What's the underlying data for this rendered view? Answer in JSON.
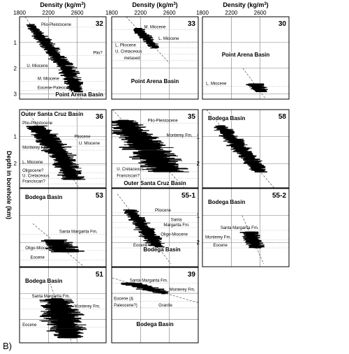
{
  "figure": {
    "label": "B)",
    "y_axis_label": "Depth in borehole (km)",
    "column_titles": [
      "Density (kg/m3)",
      "Density (kg/m3)",
      "Density (kg/m3)"
    ],
    "x_ticks": [
      "1800",
      "2200",
      "2600"
    ],
    "colors": {
      "data": "#000000",
      "grid": "#7a7a7a",
      "frame": "#000000",
      "trend": "#555555"
    }
  },
  "chart_data": [
    {
      "type": "scatter",
      "id": "32",
      "basin": "Point Arena Basin",
      "xlim": [
        1800,
        3000
      ],
      "ylim": [
        3.2,
        0
      ],
      "y_ticks": [
        "1",
        "2",
        "3"
      ],
      "units": [
        {
          "text": "Plio-Pleistocene",
          "x": 2100,
          "y": 0.35
        },
        {
          "text": "Plio?",
          "x": 2820,
          "y": 1.45
        },
        {
          "text": "U. Miocene",
          "x": 1900,
          "y": 1.95
        },
        {
          "text": "M. Miocene",
          "x": 2050,
          "y": 2.45
        },
        {
          "text": "Eocene-Paleocene",
          "x": 2050,
          "y": 2.8
        }
      ],
      "profile": [
        {
          "depth": 0.3,
          "density": 1950,
          "spread": 120
        },
        {
          "depth": 0.9,
          "density": 2120,
          "spread": 200
        },
        {
          "depth": 1.5,
          "density": 2300,
          "spread": 220
        },
        {
          "depth": 2.0,
          "density": 2450,
          "spread": 250
        },
        {
          "depth": 2.6,
          "density": 2550,
          "spread": 220
        },
        {
          "depth": 2.95,
          "density": 2600,
          "spread": 180
        }
      ]
    },
    {
      "type": "scatter",
      "id": "33",
      "basin": "Point Arena Basin",
      "xlim": [
        1800,
        3000
      ],
      "ylim": [
        3.2,
        0
      ],
      "y_ticks": [],
      "units": [
        {
          "text": "M. Miocene",
          "x": 2250,
          "y": 0.45
        },
        {
          "text": "L. Miocene",
          "x": 2450,
          "y": 0.9
        },
        {
          "text": "L. Pliocene",
          "x": 1850,
          "y": 1.15
        },
        {
          "text": "U. Cretaceous",
          "x": 1850,
          "y": 1.4
        },
        {
          "text": "metased",
          "x": 1970,
          "y": 1.65
        }
      ],
      "profile": [
        {
          "depth": 0.45,
          "density": 2150,
          "spread": 150
        },
        {
          "depth": 0.8,
          "density": 2270,
          "spread": 180
        },
        {
          "depth": 1.2,
          "density": 2400,
          "spread": 150
        }
      ]
    },
    {
      "type": "scatter",
      "id": "30",
      "basin": "Point Arena Basin",
      "xlim": [
        1800,
        3000
      ],
      "ylim": [
        3.2,
        0
      ],
      "y_ticks": [],
      "units": [
        {
          "text": "L. Miocene",
          "x": 1850,
          "y": 2.65
        }
      ],
      "profile": [
        {
          "depth": 2.6,
          "density": 2520,
          "spread": 200
        },
        {
          "depth": 2.9,
          "density": 2600,
          "spread": 250
        }
      ]
    },
    {
      "type": "scatter",
      "id": "36",
      "basin": "Outer Santa Cruz Basin",
      "xlim": [
        1800,
        3000
      ],
      "ylim": [
        2.9,
        0
      ],
      "y_ticks": [
        "1",
        "2"
      ],
      "units": [
        {
          "text": "Plio-Pleistocene",
          "x": 1840,
          "y": 0.55
        },
        {
          "text": "Pliocene",
          "x": 2560,
          "y": 1.05
        },
        {
          "text": "U. Miocene",
          "x": 2620,
          "y": 1.3
        },
        {
          "text": "Monterey Fm.",
          "x": 1840,
          "y": 1.45
        },
        {
          "text": "L. Miocene",
          "x": 1840,
          "y": 2.0
        },
        {
          "text": "Oligocene?",
          "x": 1840,
          "y": 2.3
        },
        {
          "text": "U. Cretaceous",
          "x": 1840,
          "y": 2.5
        },
        {
          "text": "Franciscan?",
          "x": 1840,
          "y": 2.7
        }
      ],
      "profile": [
        {
          "depth": 0.6,
          "density": 2050,
          "spread": 250
        },
        {
          "depth": 1.1,
          "density": 2200,
          "spread": 350
        },
        {
          "depth": 1.6,
          "density": 2350,
          "spread": 350
        },
        {
          "depth": 2.1,
          "density": 2450,
          "spread": 300
        },
        {
          "depth": 2.6,
          "density": 2550,
          "spread": 300
        }
      ]
    },
    {
      "type": "scatter",
      "id": "35",
      "basin": "Outer Santa Cruz Basin",
      "xlim": [
        1800,
        3000
      ],
      "ylim": [
        2.9,
        0
      ],
      "y_ticks": [],
      "units": [
        {
          "text": "Plio-Pleistocene",
          "x": 2300,
          "y": 0.45
        },
        {
          "text": "Monterey Fm.",
          "x": 2560,
          "y": 1.0
        },
        {
          "text": "U. Cretaceous",
          "x": 1870,
          "y": 2.25
        },
        {
          "text": "Franciscan?",
          "x": 1870,
          "y": 2.5
        }
      ],
      "profile": [
        {
          "depth": 0.4,
          "density": 1950,
          "spread": 350
        },
        {
          "depth": 0.9,
          "density": 2100,
          "spread": 500
        },
        {
          "depth": 1.4,
          "density": 2300,
          "spread": 600
        },
        {
          "depth": 1.9,
          "density": 2450,
          "spread": 600
        },
        {
          "depth": 2.3,
          "density": 2600,
          "spread": 500
        }
      ]
    },
    {
      "type": "scatter",
      "id": "58",
      "basin": "Bodega Basin",
      "xlim": [
        1800,
        3000
      ],
      "ylim": [
        2.9,
        0
      ],
      "y_ticks": [
        "1",
        "2"
      ],
      "units": [],
      "profile": [
        {
          "depth": 0.6,
          "density": 2050,
          "spread": 200
        },
        {
          "depth": 1.2,
          "density": 2250,
          "spread": 250
        },
        {
          "depth": 1.8,
          "density": 2450,
          "spread": 250
        },
        {
          "depth": 2.3,
          "density": 2600,
          "spread": 200
        }
      ]
    },
    {
      "type": "scatter",
      "id": "53",
      "basin": "Bodega Basin",
      "xlim": [
        1800,
        3000
      ],
      "ylim": [
        2.9,
        0
      ],
      "y_ticks": [],
      "units": [
        {
          "text": "Santa Margarita Fm.",
          "x": 2350,
          "y": 1.65
        },
        {
          "text": "Oligo-Miocene",
          "x": 1880,
          "y": 2.25
        },
        {
          "text": "Eocene",
          "x": 1950,
          "y": 2.6
        }
      ],
      "profile": [
        {
          "depth": 1.9,
          "density": 2250,
          "spread": 350
        },
        {
          "depth": 2.15,
          "density": 2350,
          "spread": 450
        },
        {
          "depth": 2.35,
          "density": 2450,
          "spread": 400
        }
      ]
    },
    {
      "type": "scatter",
      "id": "55-1",
      "basin": "Bodega Basin",
      "xlim": [
        1800,
        3000
      ],
      "ylim": [
        2.9,
        0
      ],
      "y_ticks": [],
      "units": [
        {
          "text": "Pliocene",
          "x": 2400,
          "y": 0.85
        },
        {
          "text": "Santa",
          "x": 2620,
          "y": 1.2
        },
        {
          "text": "Margarita Fm.",
          "x": 2520,
          "y": 1.4
        },
        {
          "text": "Oligo-Miocene",
          "x": 2480,
          "y": 1.75
        },
        {
          "text": "Eocene",
          "x": 2100,
          "y": 2.15
        }
      ],
      "profile": [
        {
          "depth": 0.8,
          "density": 2050,
          "spread": 200
        },
        {
          "depth": 1.3,
          "density": 2200,
          "spread": 250
        },
        {
          "depth": 1.8,
          "density": 2350,
          "spread": 250
        },
        {
          "depth": 2.2,
          "density": 2450,
          "spread": 200
        }
      ]
    },
    {
      "type": "scatter",
      "id": "55-2",
      "basin": "Bodega Basin",
      "xlim": [
        1800,
        3000
      ],
      "ylim": [
        2.9,
        0
      ],
      "y_ticks": [
        "1",
        "2"
      ],
      "units": [
        {
          "text": "Santa Margarita Fm.",
          "x": 2050,
          "y": 1.5
        },
        {
          "text": "Monterey Fm.",
          "x": 1840,
          "y": 1.85
        },
        {
          "text": "Eocene",
          "x": 1950,
          "y": 2.15
        }
      ],
      "profile": [
        {
          "depth": 1.6,
          "density": 2450,
          "spread": 200
        },
        {
          "depth": 1.9,
          "density": 2500,
          "spread": 250
        },
        {
          "depth": 2.2,
          "density": 2550,
          "spread": 200
        }
      ]
    },
    {
      "type": "scatter",
      "id": "51",
      "basin": "Bodega Basin",
      "xlim": [
        1800,
        3000
      ],
      "ylim": [
        2.9,
        0
      ],
      "y_ticks": [],
      "units": [
        {
          "text": "Santa Margarita Fm.",
          "x": 1970,
          "y": 1.15
        },
        {
          "text": "Monterey Fm.",
          "x": 2560,
          "y": 1.55
        },
        {
          "text": "Eocene",
          "x": 1840,
          "y": 2.25
        }
      ],
      "profile": [
        {
          "depth": 1.2,
          "density": 2300,
          "spread": 350
        },
        {
          "depth": 1.6,
          "density": 2350,
          "spread": 500
        },
        {
          "depth": 2.0,
          "density": 2400,
          "spread": 550
        },
        {
          "depth": 2.4,
          "density": 2450,
          "spread": 450
        },
        {
          "depth": 2.7,
          "density": 2500,
          "spread": 350
        }
      ]
    },
    {
      "type": "scatter",
      "id": "39",
      "basin": "Bodega Basin",
      "xlim": [
        1800,
        3000
      ],
      "ylim": [
        2.9,
        0
      ],
      "y_ticks": [],
      "units": [
        {
          "text": "Santa Margarita Fm.",
          "x": 2050,
          "y": 0.55
        },
        {
          "text": "Monterey Fm.",
          "x": 2600,
          "y": 0.9
        },
        {
          "text": "Eocene (&",
          "x": 1830,
          "y": 1.25
        },
        {
          "text": "Paleocene?)",
          "x": 1830,
          "y": 1.5
        },
        {
          "text": "Granite",
          "x": 2450,
          "y": 1.5
        }
      ],
      "profile": [
        {
          "depth": 0.6,
          "density": 2050,
          "spread": 300
        },
        {
          "depth": 0.8,
          "density": 2300,
          "spread": 350
        },
        {
          "depth": 1.0,
          "density": 2550,
          "spread": 200
        }
      ]
    }
  ]
}
